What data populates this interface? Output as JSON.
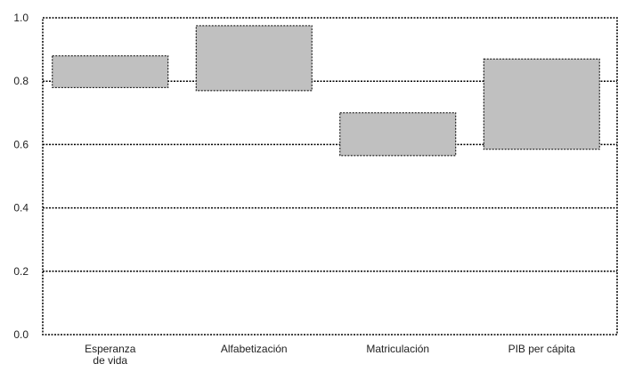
{
  "chart_data": {
    "type": "bar",
    "subtype": "floating-range",
    "title": "",
    "xlabel": "",
    "ylabel": "",
    "ylim": [
      0,
      1
    ],
    "yticks": [
      "0.0",
      "0.2",
      "0.4",
      "0.6",
      "0.8",
      "1.0"
    ],
    "grid": true,
    "categories": [
      [
        "Esperanza",
        "de vida"
      ],
      [
        "Alfabetización"
      ],
      [
        "Matriculación"
      ],
      [
        "PIB per cápita"
      ]
    ],
    "ranges": [
      {
        "low": 0.78,
        "high": 0.88
      },
      {
        "low": 0.77,
        "high": 0.975
      },
      {
        "low": 0.565,
        "high": 0.7
      },
      {
        "low": 0.585,
        "high": 0.87
      }
    ],
    "bar_color": "#c0c0c0"
  }
}
